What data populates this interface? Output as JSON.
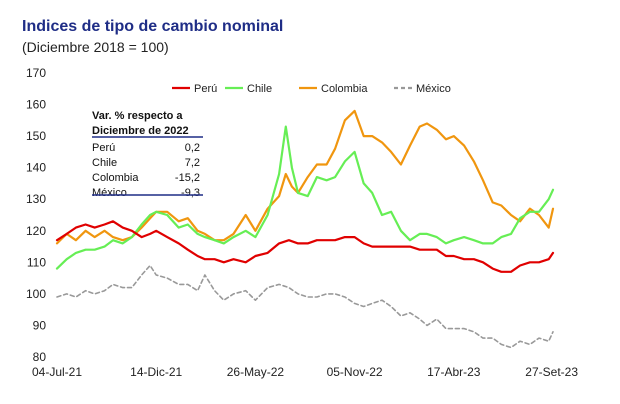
{
  "title": "Indices de tipo de cambio nominal",
  "subtitle": "(Diciembre 2018 = 100)",
  "colors": {
    "peru": "#e00000",
    "chile": "#66ee55",
    "colombia": "#f0960f",
    "mexico": "#999999",
    "table_line": "#1f2d86"
  },
  "chart_data": {
    "type": "line",
    "title": "Indices de tipo de cambio nominal",
    "subtitle": "(Diciembre 2018 = 100)",
    "xlabel": "",
    "ylabel": "",
    "ylim": [
      80,
      170
    ],
    "yticks": [
      "170",
      "160",
      "150",
      "140",
      "130",
      "120",
      "110",
      "100",
      "90",
      "80"
    ],
    "x_ticks": [
      "04-Jul-21",
      "14-Dic-21",
      "26-May-22",
      "05-Nov-22",
      "17-Abr-23",
      "27-Set-23"
    ],
    "x_range": [
      "04-Jul-21",
      "27-Set-23"
    ],
    "legend_position": "top",
    "grid": false,
    "series": [
      {
        "name": "Perú",
        "style": "solid",
        "color": "#e00000",
        "points": [
          [
            "04-Jul-21",
            117
          ],
          [
            "20-Jul-21",
            119
          ],
          [
            "04-Ago-21",
            121
          ],
          [
            "20-Ago-21",
            122
          ],
          [
            "04-Set-21",
            121
          ],
          [
            "20-Set-21",
            122
          ],
          [
            "04-Oct-21",
            123
          ],
          [
            "20-Oct-21",
            121
          ],
          [
            "04-Nov-21",
            120
          ],
          [
            "20-Nov-21",
            118
          ],
          [
            "04-Dic-21",
            119
          ],
          [
            "14-Dic-21",
            120
          ],
          [
            "01-Ene-22",
            118
          ],
          [
            "20-Ene-22",
            116
          ],
          [
            "04-Feb-22",
            114
          ],
          [
            "20-Feb-22",
            112
          ],
          [
            "04-Mar-22",
            111
          ],
          [
            "20-Mar-22",
            111
          ],
          [
            "04-Abr-22",
            110
          ],
          [
            "20-Abr-22",
            111
          ],
          [
            "10-May-22",
            110
          ],
          [
            "26-May-22",
            112
          ],
          [
            "15-Jun-22",
            113
          ],
          [
            "04-Jul-22",
            116
          ],
          [
            "20-Jul-22",
            117
          ],
          [
            "04-Ago-22",
            116
          ],
          [
            "20-Ago-22",
            116
          ],
          [
            "04-Set-22",
            117
          ],
          [
            "20-Set-22",
            117
          ],
          [
            "04-Oct-22",
            117
          ],
          [
            "20-Oct-22",
            118
          ],
          [
            "05-Nov-22",
            118
          ],
          [
            "20-Nov-22",
            116
          ],
          [
            "04-Dic-22",
            115
          ],
          [
            "20-Dic-22",
            115
          ],
          [
            "04-Ene-23",
            115
          ],
          [
            "20-Ene-23",
            115
          ],
          [
            "04-Feb-23",
            115
          ],
          [
            "20-Feb-23",
            114
          ],
          [
            "04-Mar-23",
            114
          ],
          [
            "20-Mar-23",
            114
          ],
          [
            "04-Abr-23",
            112
          ],
          [
            "17-Abr-23",
            112
          ],
          [
            "04-May-23",
            111
          ],
          [
            "20-May-23",
            111
          ],
          [
            "04-Jun-23",
            110
          ],
          [
            "20-Jun-23",
            108
          ],
          [
            "04-Jul-23",
            107
          ],
          [
            "20-Jul-23",
            107
          ],
          [
            "04-Ago-23",
            109
          ],
          [
            "20-Ago-23",
            110
          ],
          [
            "04-Set-23",
            110
          ],
          [
            "20-Set-23",
            111
          ],
          [
            "27-Set-23",
            113
          ]
        ]
      },
      {
        "name": "Chile",
        "style": "solid",
        "color": "#66ee55",
        "points": [
          [
            "04-Jul-21",
            108
          ],
          [
            "20-Jul-21",
            111
          ],
          [
            "04-Ago-21",
            113
          ],
          [
            "20-Ago-21",
            114
          ],
          [
            "04-Set-21",
            114
          ],
          [
            "20-Set-21",
            115
          ],
          [
            "04-Oct-21",
            117
          ],
          [
            "20-Oct-21",
            116
          ],
          [
            "04-Nov-21",
            118
          ],
          [
            "20-Nov-21",
            122
          ],
          [
            "04-Dic-21",
            125
          ],
          [
            "14-Dic-21",
            126
          ],
          [
            "01-Ene-22",
            125
          ],
          [
            "20-Ene-22",
            121
          ],
          [
            "04-Feb-22",
            122
          ],
          [
            "20-Feb-22",
            119
          ],
          [
            "04-Mar-22",
            118
          ],
          [
            "20-Mar-22",
            117
          ],
          [
            "04-Abr-22",
            116
          ],
          [
            "20-Abr-22",
            118
          ],
          [
            "10-May-22",
            120
          ],
          [
            "26-May-22",
            118
          ],
          [
            "15-Jun-22",
            125
          ],
          [
            "04-Jul-22",
            138
          ],
          [
            "15-Jul-22",
            153
          ],
          [
            "25-Jul-22",
            140
          ],
          [
            "04-Ago-22",
            132
          ],
          [
            "20-Ago-22",
            131
          ],
          [
            "04-Set-22",
            137
          ],
          [
            "20-Set-22",
            136
          ],
          [
            "04-Oct-22",
            137
          ],
          [
            "20-Oct-22",
            142
          ],
          [
            "05-Nov-22",
            145
          ],
          [
            "20-Nov-22",
            135
          ],
          [
            "04-Dic-22",
            132
          ],
          [
            "20-Dic-22",
            125
          ],
          [
            "04-Ene-23",
            126
          ],
          [
            "20-Ene-23",
            120
          ],
          [
            "04-Feb-23",
            117
          ],
          [
            "20-Feb-23",
            119
          ],
          [
            "04-Mar-23",
            119
          ],
          [
            "20-Mar-23",
            118
          ],
          [
            "04-Abr-23",
            116
          ],
          [
            "17-Abr-23",
            117
          ],
          [
            "04-May-23",
            118
          ],
          [
            "20-May-23",
            117
          ],
          [
            "04-Jun-23",
            116
          ],
          [
            "20-Jun-23",
            116
          ],
          [
            "04-Jul-23",
            118
          ],
          [
            "20-Jul-23",
            119
          ],
          [
            "04-Ago-23",
            124
          ],
          [
            "20-Ago-23",
            126
          ],
          [
            "04-Set-23",
            126
          ],
          [
            "20-Set-23",
            130
          ],
          [
            "27-Set-23",
            133
          ]
        ]
      },
      {
        "name": "Colombia",
        "style": "solid",
        "color": "#f0960f",
        "points": [
          [
            "04-Jul-21",
            116
          ],
          [
            "20-Jul-21",
            119
          ],
          [
            "04-Ago-21",
            117
          ],
          [
            "20-Ago-21",
            120
          ],
          [
            "04-Set-21",
            118
          ],
          [
            "20-Set-21",
            120
          ],
          [
            "04-Oct-21",
            118
          ],
          [
            "20-Oct-21",
            117
          ],
          [
            "04-Nov-21",
            118
          ],
          [
            "20-Nov-21",
            121
          ],
          [
            "04-Dic-21",
            124
          ],
          [
            "14-Dic-21",
            126
          ],
          [
            "01-Ene-22",
            126
          ],
          [
            "20-Ene-22",
            123
          ],
          [
            "04-Feb-22",
            124
          ],
          [
            "20-Feb-22",
            120
          ],
          [
            "04-Mar-22",
            119
          ],
          [
            "20-Mar-22",
            117
          ],
          [
            "04-Abr-22",
            117
          ],
          [
            "20-Abr-22",
            119
          ],
          [
            "10-May-22",
            125
          ],
          [
            "26-May-22",
            120
          ],
          [
            "15-Jun-22",
            127
          ],
          [
            "04-Jul-22",
            131
          ],
          [
            "15-Jul-22",
            138
          ],
          [
            "25-Jul-22",
            134
          ],
          [
            "04-Ago-22",
            132
          ],
          [
            "20-Ago-22",
            137
          ],
          [
            "04-Set-22",
            141
          ],
          [
            "20-Set-22",
            141
          ],
          [
            "04-Oct-22",
            146
          ],
          [
            "20-Oct-22",
            155
          ],
          [
            "05-Nov-22",
            158
          ],
          [
            "20-Nov-22",
            150
          ],
          [
            "04-Dic-22",
            150
          ],
          [
            "20-Dic-22",
            148
          ],
          [
            "04-Ene-23",
            145
          ],
          [
            "20-Ene-23",
            141
          ],
          [
            "04-Feb-23",
            147
          ],
          [
            "20-Feb-23",
            153
          ],
          [
            "04-Mar-23",
            154
          ],
          [
            "20-Mar-23",
            152
          ],
          [
            "04-Abr-23",
            149
          ],
          [
            "17-Abr-23",
            150
          ],
          [
            "04-May-23",
            147
          ],
          [
            "20-May-23",
            142
          ],
          [
            "04-Jun-23",
            136
          ],
          [
            "20-Jun-23",
            129
          ],
          [
            "04-Jul-23",
            128
          ],
          [
            "20-Jul-23",
            125
          ],
          [
            "04-Ago-23",
            123
          ],
          [
            "20-Ago-23",
            127
          ],
          [
            "04-Set-23",
            125
          ],
          [
            "20-Set-23",
            121
          ],
          [
            "27-Set-23",
            127
          ]
        ]
      },
      {
        "name": "México",
        "style": "dashed",
        "color": "#999999",
        "points": [
          [
            "04-Jul-21",
            99
          ],
          [
            "20-Jul-21",
            100
          ],
          [
            "04-Ago-21",
            99
          ],
          [
            "20-Ago-21",
            101
          ],
          [
            "04-Set-21",
            100
          ],
          [
            "20-Set-21",
            101
          ],
          [
            "04-Oct-21",
            103
          ],
          [
            "20-Oct-21",
            102
          ],
          [
            "04-Nov-21",
            102
          ],
          [
            "20-Nov-21",
            106
          ],
          [
            "04-Dic-21",
            109
          ],
          [
            "14-Dic-21",
            106
          ],
          [
            "01-Ene-22",
            105
          ],
          [
            "20-Ene-22",
            103
          ],
          [
            "04-Feb-22",
            103
          ],
          [
            "20-Feb-22",
            101
          ],
          [
            "04-Mar-22",
            106
          ],
          [
            "20-Mar-22",
            101
          ],
          [
            "04-Abr-22",
            98
          ],
          [
            "20-Abr-22",
            100
          ],
          [
            "10-May-22",
            101
          ],
          [
            "26-May-22",
            98
          ],
          [
            "15-Jun-22",
            102
          ],
          [
            "04-Jul-22",
            103
          ],
          [
            "20-Jul-22",
            102
          ],
          [
            "04-Ago-22",
            100
          ],
          [
            "20-Ago-22",
            99
          ],
          [
            "04-Set-22",
            99
          ],
          [
            "20-Set-22",
            100
          ],
          [
            "04-Oct-22",
            100
          ],
          [
            "20-Oct-22",
            99
          ],
          [
            "05-Nov-22",
            97
          ],
          [
            "20-Nov-22",
            96
          ],
          [
            "04-Dic-22",
            97
          ],
          [
            "20-Dic-22",
            98
          ],
          [
            "04-Ene-23",
            96
          ],
          [
            "20-Ene-23",
            93
          ],
          [
            "04-Feb-23",
            94
          ],
          [
            "20-Feb-23",
            92
          ],
          [
            "04-Mar-23",
            90
          ],
          [
            "20-Mar-23",
            92
          ],
          [
            "04-Abr-23",
            89
          ],
          [
            "17-Abr-23",
            89
          ],
          [
            "04-May-23",
            89
          ],
          [
            "20-May-23",
            88
          ],
          [
            "04-Jun-23",
            86
          ],
          [
            "20-Jun-23",
            86
          ],
          [
            "04-Jul-23",
            84
          ],
          [
            "20-Jul-23",
            83
          ],
          [
            "04-Ago-23",
            85
          ],
          [
            "20-Ago-23",
            84
          ],
          [
            "04-Set-23",
            86
          ],
          [
            "20-Set-23",
            85
          ],
          [
            "27-Set-23",
            88
          ]
        ]
      }
    ],
    "table": {
      "header_line1": "Var. % respecto a",
      "header_line2": "Diciembre de 2022",
      "rows": [
        {
          "label": "Perú",
          "value": "0,2"
        },
        {
          "label": "Chile",
          "value": "7,2"
        },
        {
          "label": "Colombia",
          "value": "-15,2"
        },
        {
          "label": "México",
          "value": "-9,3"
        }
      ]
    }
  }
}
